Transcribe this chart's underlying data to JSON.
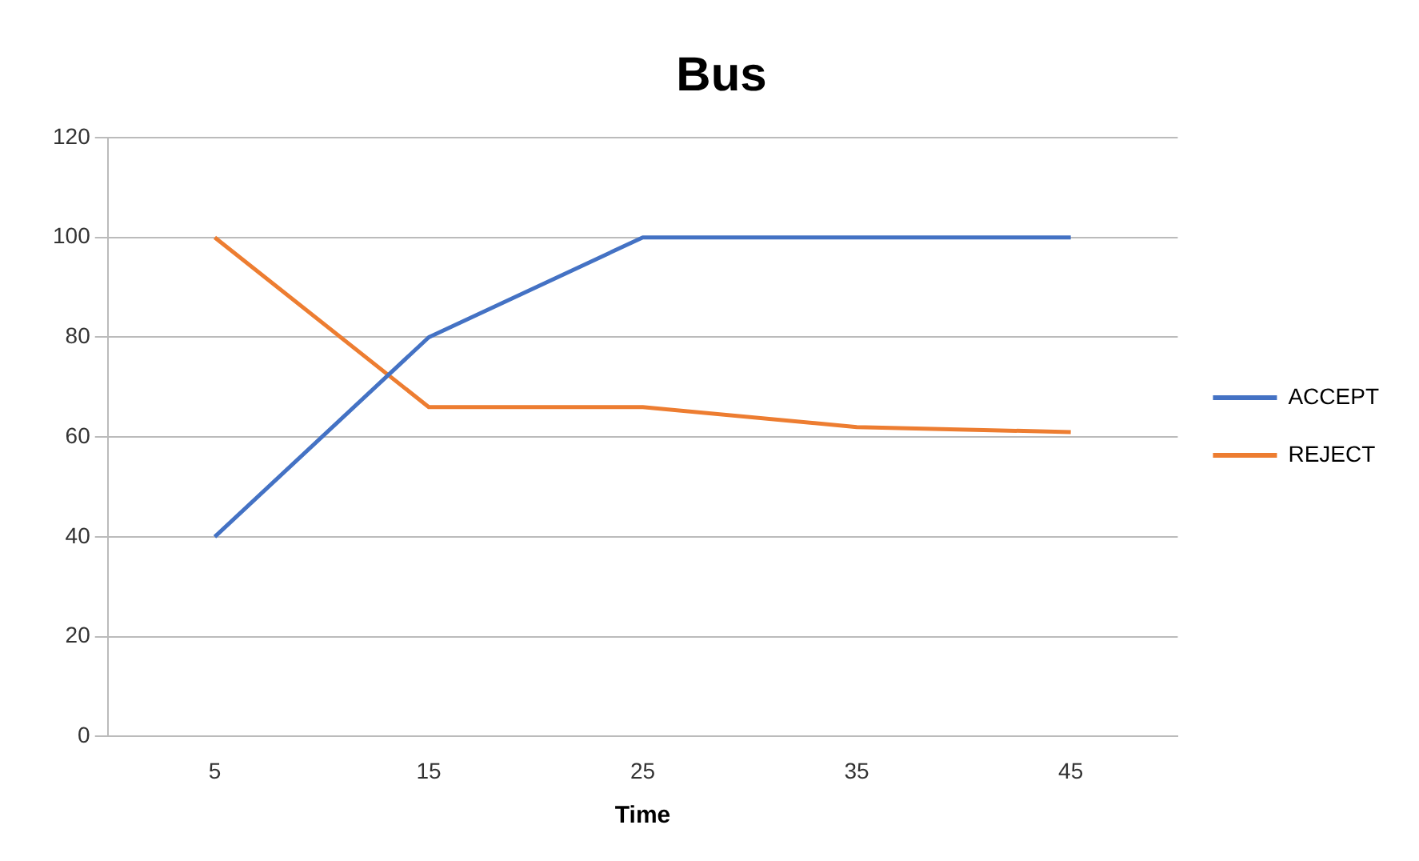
{
  "chart_data": {
    "type": "line",
    "title": "Bus",
    "xlabel": "Time",
    "categories": [
      "5",
      "15",
      "25",
      "35",
      "45"
    ],
    "series": [
      {
        "name": "ACCEPT",
        "color": "#4472c4",
        "values": [
          40,
          80,
          100,
          100,
          100
        ]
      },
      {
        "name": "REJECT",
        "color": "#ed7d31",
        "values": [
          100,
          66,
          66,
          62,
          61
        ]
      }
    ],
    "ylim": [
      0,
      120
    ],
    "yticks": [
      0,
      20,
      40,
      60,
      80,
      100,
      120
    ],
    "grid": "y",
    "legend": "right",
    "marker": "none",
    "line_style": "solid"
  }
}
